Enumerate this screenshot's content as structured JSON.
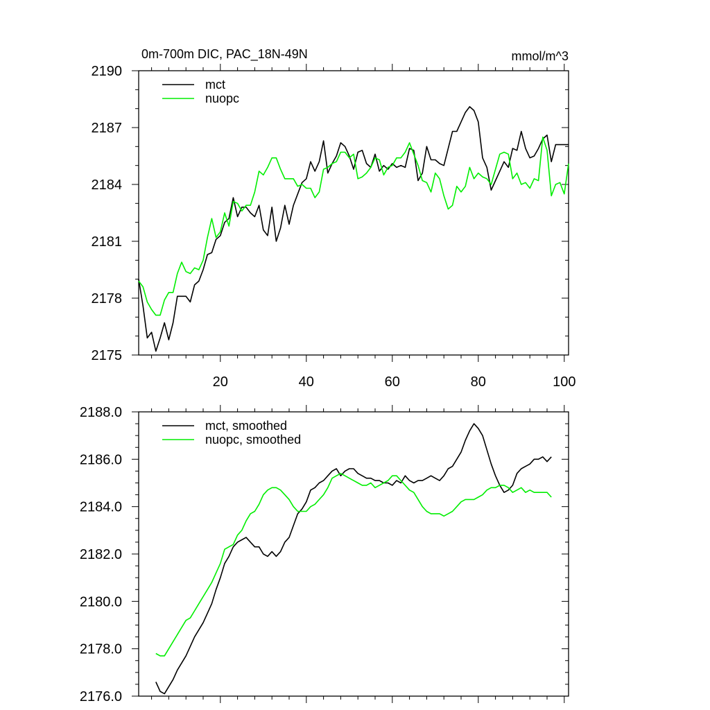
{
  "chart_data": [
    {
      "type": "line",
      "title": "0m-700m DIC, PAC_18N-49N",
      "units": "mmol/m^3",
      "xlim": [
        1,
        101
      ],
      "ylim": [
        2175,
        2190
      ],
      "xticks": [
        20,
        40,
        60,
        80,
        100
      ],
      "xtick_labels": [
        "20",
        "40",
        "60",
        "80",
        "100"
      ],
      "yticks": [
        2175,
        2178,
        2181,
        2184,
        2187,
        2190
      ],
      "ytick_labels": [
        "2175",
        "2178",
        "2181",
        "2184",
        "2187",
        "2190"
      ],
      "legend": "top-left",
      "grid": false,
      "series": [
        {
          "name": "mct",
          "color": "#000000",
          "x": [
            1,
            2,
            3,
            4,
            5,
            6,
            7,
            8,
            9,
            10,
            11,
            12,
            13,
            14,
            15,
            16,
            17,
            18,
            19,
            20,
            21,
            22,
            23,
            24,
            25,
            26,
            27,
            28,
            29,
            30,
            31,
            32,
            33,
            34,
            35,
            36,
            37,
            38,
            39,
            40,
            41,
            42,
            43,
            44,
            45,
            46,
            47,
            48,
            49,
            50,
            51,
            52,
            53,
            54,
            55,
            56,
            57,
            58,
            59,
            60,
            61,
            62,
            63,
            64,
            65,
            66,
            67,
            68,
            69,
            70,
            71,
            72,
            73,
            74,
            75,
            76,
            77,
            78,
            79,
            80,
            81,
            82,
            83,
            84,
            85,
            86,
            87,
            88,
            89,
            90,
            91,
            92,
            93,
            94,
            95,
            96,
            97,
            98,
            99,
            100,
            101
          ],
          "values": [
            2179.0,
            2177.6,
            2175.9,
            2176.2,
            2175.2,
            2175.9,
            2176.7,
            2175.8,
            2176.7,
            2178.1,
            2178.1,
            2178.1,
            2177.8,
            2178.7,
            2178.9,
            2179.5,
            2180.3,
            2180.4,
            2181.1,
            2181.3,
            2182.0,
            2182.2,
            2183.3,
            2182.3,
            2182.8,
            2182.8,
            2182.5,
            2182.3,
            2182.9,
            2181.6,
            2181.3,
            2182.8,
            2181.0,
            2181.7,
            2182.9,
            2181.9,
            2182.9,
            2183.5,
            2184.1,
            2184.3,
            2185.2,
            2184.7,
            2185.2,
            2186.3,
            2184.6,
            2185.1,
            2185.5,
            2186.2,
            2186.0,
            2185.5,
            2184.8,
            2185.7,
            2185.8,
            2185.1,
            2184.9,
            2185.6,
            2184.7,
            2185.0,
            2184.8,
            2185.1,
            2184.9,
            2185.0,
            2184.9,
            2185.9,
            2185.8,
            2184.2,
            2184.6,
            2186.0,
            2185.3,
            2185.3,
            2185.1,
            2185.0,
            2185.9,
            2186.8,
            2186.8,
            2187.3,
            2187.8,
            2188.1,
            2187.9,
            2187.3,
            2185.4,
            2184.9,
            2183.7,
            2184.2,
            2184.7,
            2185.2,
            2184.9,
            2185.9,
            2185.8,
            2186.8,
            2185.9,
            2185.4,
            2185.5,
            2185.9,
            2186.4,
            2186.6,
            2185.2,
            2186.1,
            2186.1,
            2186.1,
            2186.1
          ]
        },
        {
          "name": "nuopc",
          "color": "#00ee00",
          "x": [
            1,
            2,
            3,
            4,
            5,
            6,
            7,
            8,
            9,
            10,
            11,
            12,
            13,
            14,
            15,
            16,
            17,
            18,
            19,
            20,
            21,
            22,
            23,
            24,
            25,
            26,
            27,
            28,
            29,
            30,
            31,
            32,
            33,
            34,
            35,
            36,
            37,
            38,
            39,
            40,
            41,
            42,
            43,
            44,
            45,
            46,
            47,
            48,
            49,
            50,
            51,
            52,
            53,
            54,
            55,
            56,
            57,
            58,
            59,
            60,
            61,
            62,
            63,
            64,
            65,
            66,
            67,
            68,
            69,
            70,
            71,
            72,
            73,
            74,
            75,
            76,
            77,
            78,
            79,
            80,
            81,
            82,
            83,
            84,
            85,
            86,
            87,
            88,
            89,
            90,
            91,
            92,
            93,
            94,
            95,
            96,
            97,
            98,
            99,
            100,
            101
          ],
          "values": [
            2178.9,
            2178.6,
            2177.8,
            2177.4,
            2177.1,
            2177.1,
            2177.9,
            2178.3,
            2178.3,
            2179.3,
            2179.9,
            2179.4,
            2179.3,
            2179.6,
            2179.5,
            2180.0,
            2181.2,
            2182.2,
            2181.2,
            2181.5,
            2182.5,
            2181.8,
            2183.1,
            2183.0,
            2182.6,
            2182.9,
            2182.9,
            2183.6,
            2184.7,
            2184.5,
            2184.9,
            2185.4,
            2185.4,
            2184.8,
            2184.3,
            2184.3,
            2184.3,
            2183.9,
            2184.0,
            2183.8,
            2183.8,
            2183.3,
            2183.6,
            2184.8,
            2184.9,
            2185.1,
            2185.2,
            2185.7,
            2185.7,
            2185.4,
            2185.6,
            2184.3,
            2184.4,
            2184.6,
            2184.9,
            2185.4,
            2185.3,
            2184.5,
            2184.9,
            2185.0,
            2185.4,
            2185.4,
            2185.7,
            2186.2,
            2185.6,
            2185.0,
            2184.2,
            2184.1,
            2183.6,
            2184.6,
            2184.3,
            2183.4,
            2182.7,
            2182.9,
            2183.9,
            2183.6,
            2183.9,
            2184.9,
            2184.3,
            2184.6,
            2184.4,
            2184.3,
            2184.0,
            2184.8,
            2185.6,
            2185.7,
            2185.6,
            2184.3,
            2184.6,
            2184.0,
            2184.1,
            2183.8,
            2184.3,
            2184.2,
            2186.5,
            2185.8,
            2183.4,
            2184.0,
            2184.1,
            2183.5,
            2185.1
          ]
        }
      ]
    },
    {
      "type": "line",
      "title": "",
      "xlim": [
        1,
        101
      ],
      "ylim": [
        2176.0,
        2188.0
      ],
      "xticks": [
        20,
        40,
        60,
        80,
        100
      ],
      "yticks": [
        2176.0,
        2178.0,
        2180.0,
        2182.0,
        2184.0,
        2186.0,
        2188.0
      ],
      "ytick_labels": [
        "2176.0",
        "2178.0",
        "2180.0",
        "2182.0",
        "2184.0",
        "2186.0",
        "2188.0"
      ],
      "legend": "top-left",
      "grid": false,
      "series": [
        {
          "name": "mct, smoothed",
          "color": "#000000",
          "x": [
            5,
            6,
            7,
            8,
            9,
            10,
            11,
            12,
            13,
            14,
            15,
            16,
            17,
            18,
            19,
            20,
            21,
            22,
            23,
            24,
            25,
            26,
            27,
            28,
            29,
            30,
            31,
            32,
            33,
            34,
            35,
            36,
            37,
            38,
            39,
            40,
            41,
            42,
            43,
            44,
            45,
            46,
            47,
            48,
            49,
            50,
            51,
            52,
            53,
            54,
            55,
            56,
            57,
            58,
            59,
            60,
            61,
            62,
            63,
            64,
            65,
            66,
            67,
            68,
            69,
            70,
            71,
            72,
            73,
            74,
            75,
            76,
            77,
            78,
            79,
            80,
            81,
            82,
            83,
            84,
            85,
            86,
            87,
            88,
            89,
            90,
            91,
            92,
            93,
            94,
            95,
            96,
            97
          ],
          "values": [
            2176.6,
            2176.2,
            2176.1,
            2176.4,
            2176.7,
            2177.1,
            2177.4,
            2177.7,
            2178.1,
            2178.5,
            2178.8,
            2179.1,
            2179.5,
            2179.9,
            2180.5,
            2181.0,
            2181.6,
            2181.9,
            2182.3,
            2182.5,
            2182.6,
            2182.7,
            2182.5,
            2182.3,
            2182.3,
            2182.0,
            2181.9,
            2182.1,
            2181.9,
            2182.1,
            2182.5,
            2182.7,
            2183.2,
            2183.7,
            2183.9,
            2184.2,
            2184.7,
            2184.8,
            2185.0,
            2185.1,
            2185.3,
            2185.5,
            2185.6,
            2185.3,
            2185.5,
            2185.6,
            2185.6,
            2185.4,
            2185.3,
            2185.2,
            2185.2,
            2185.1,
            2185.1,
            2185.0,
            2185.0,
            2184.9,
            2185.1,
            2185.0,
            2185.3,
            2185.1,
            2185.0,
            2185.1,
            2185.1,
            2185.2,
            2185.3,
            2185.2,
            2185.1,
            2185.3,
            2185.6,
            2185.7,
            2186.0,
            2186.3,
            2186.8,
            2187.2,
            2187.5,
            2187.3,
            2187.0,
            2186.4,
            2185.8,
            2185.3,
            2184.9,
            2184.6,
            2184.7,
            2184.9,
            2185.4,
            2185.6,
            2185.7,
            2185.8,
            2186.0,
            2186.0,
            2186.1,
            2185.9,
            2186.1
          ]
        },
        {
          "name": "nuopc, smoothed",
          "color": "#00ee00",
          "x": [
            5,
            6,
            7,
            8,
            9,
            10,
            11,
            12,
            13,
            14,
            15,
            16,
            17,
            18,
            19,
            20,
            21,
            22,
            23,
            24,
            25,
            26,
            27,
            28,
            29,
            30,
            31,
            32,
            33,
            34,
            35,
            36,
            37,
            38,
            39,
            40,
            41,
            42,
            43,
            44,
            45,
            46,
            47,
            48,
            49,
            50,
            51,
            52,
            53,
            54,
            55,
            56,
            57,
            58,
            59,
            60,
            61,
            62,
            63,
            64,
            65,
            66,
            67,
            68,
            69,
            70,
            71,
            72,
            73,
            74,
            75,
            76,
            77,
            78,
            79,
            80,
            81,
            82,
            83,
            84,
            85,
            86,
            87,
            88,
            89,
            90,
            91,
            92,
            93,
            94,
            95,
            96,
            97
          ],
          "values": [
            2177.8,
            2177.7,
            2177.7,
            2178.0,
            2178.3,
            2178.6,
            2178.9,
            2179.2,
            2179.3,
            2179.6,
            2179.9,
            2180.2,
            2180.5,
            2180.8,
            2181.2,
            2181.6,
            2182.2,
            2182.3,
            2182.4,
            2182.8,
            2183.0,
            2183.4,
            2183.7,
            2183.8,
            2184.1,
            2184.5,
            2184.7,
            2184.8,
            2184.8,
            2184.7,
            2184.5,
            2184.3,
            2184.0,
            2183.8,
            2183.8,
            2183.8,
            2184.0,
            2184.1,
            2184.3,
            2184.5,
            2184.8,
            2185.2,
            2185.3,
            2185.4,
            2185.3,
            2185.2,
            2185.1,
            2185.0,
            2184.9,
            2184.9,
            2185.0,
            2184.8,
            2184.9,
            2185.0,
            2185.1,
            2185.3,
            2185.3,
            2185.1,
            2184.9,
            2184.7,
            2184.6,
            2184.3,
            2184.0,
            2183.8,
            2183.7,
            2183.7,
            2183.7,
            2183.6,
            2183.7,
            2183.8,
            2184.0,
            2184.2,
            2184.3,
            2184.3,
            2184.3,
            2184.4,
            2184.5,
            2184.7,
            2184.8,
            2184.8,
            2184.9,
            2184.9,
            2184.8,
            2184.6,
            2184.7,
            2184.8,
            2184.6,
            2184.7,
            2184.6,
            2184.6,
            2184.6,
            2184.6,
            2184.4
          ]
        }
      ]
    }
  ]
}
